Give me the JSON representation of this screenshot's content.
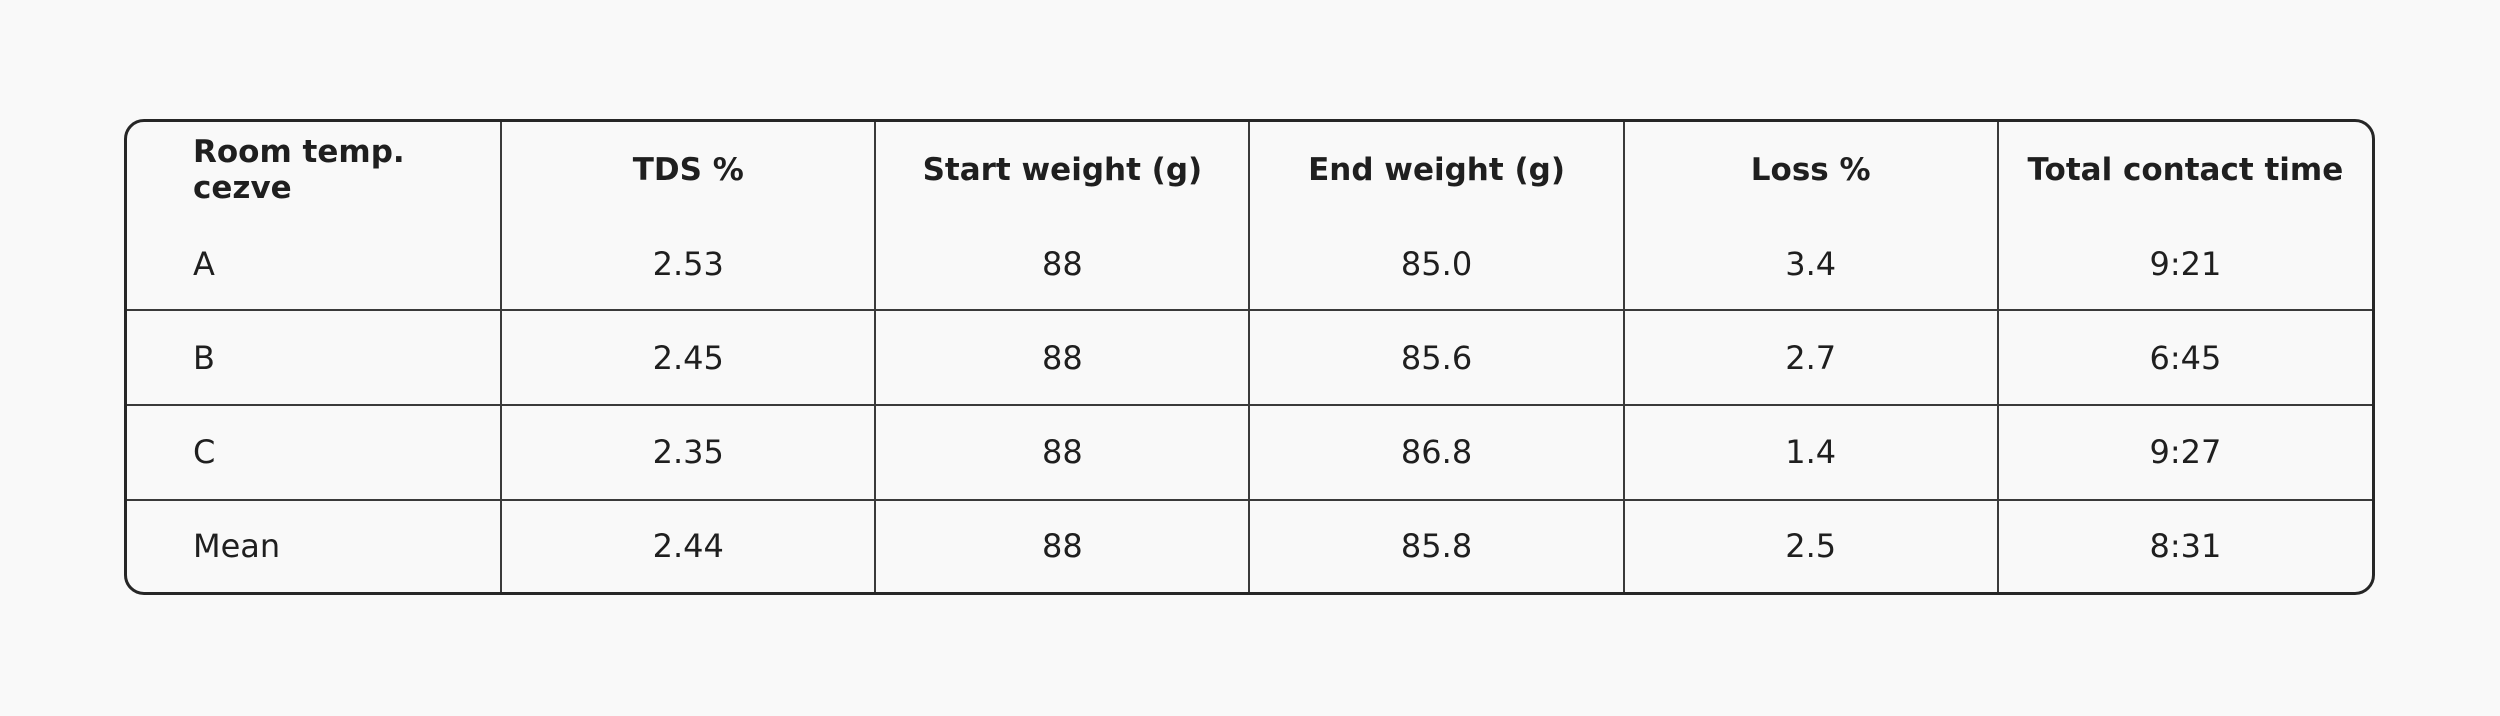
{
  "table": {
    "header": [
      "Room temp. cezve",
      "TDS %",
      "Start weight (g)",
      "End weight (g)",
      "Loss %",
      "Total contact time"
    ],
    "rows": [
      [
        "A",
        "2.53",
        "88",
        "85.0",
        "3.4",
        "9:21"
      ],
      [
        "B",
        "2.45",
        "88",
        "85.6",
        "2.7",
        "6:45"
      ],
      [
        "C",
        "2.35",
        "88",
        "86.8",
        "1.4",
        "9:27"
      ],
      [
        "Mean",
        "2.44",
        "88",
        "85.8",
        "2.5",
        "8:31"
      ]
    ]
  }
}
